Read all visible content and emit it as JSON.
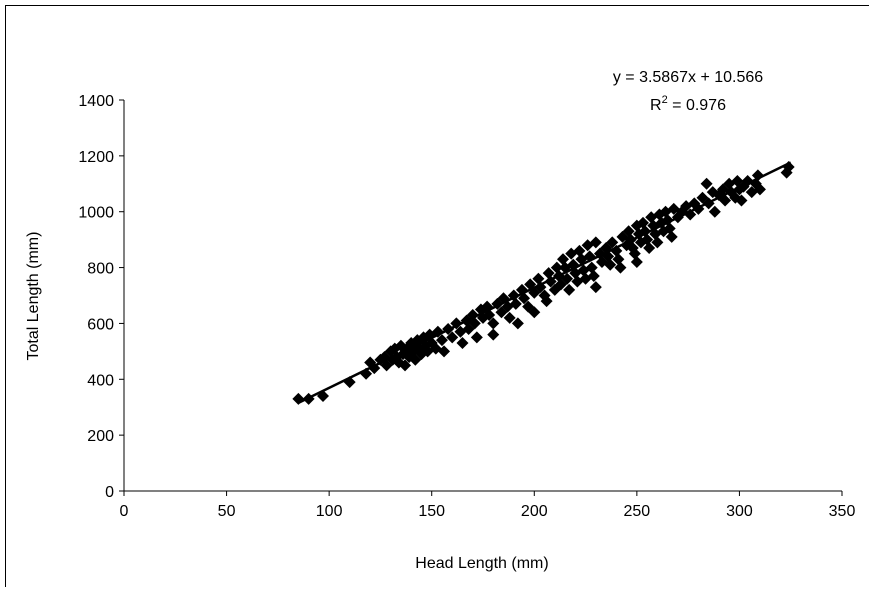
{
  "chart_data": {
    "type": "scatter",
    "title": "",
    "xlabel": "Head Length (mm)",
    "ylabel": "Total Length (mm)",
    "xlim": [
      0,
      350
    ],
    "ylim": [
      0,
      1400
    ],
    "xticks": [
      0,
      50,
      100,
      150,
      200,
      250,
      300,
      350
    ],
    "yticks": [
      0,
      200,
      400,
      600,
      800,
      1000,
      1200,
      1400
    ],
    "grid": false,
    "legend": "none",
    "marker": "diamond",
    "marker_color": "#000000",
    "trendline": {
      "type": "linear",
      "slope": 3.5867,
      "intercept": 10.566,
      "x_range": [
        85,
        325
      ],
      "equation_label": "y = 3.5867x + 10.566",
      "r2_prefix": "R",
      "r2_sup": "2",
      "r2_suffix": " = 0.976"
    },
    "series": [
      {
        "values": [
          [
            85,
            330
          ],
          [
            90,
            330
          ],
          [
            97,
            340
          ],
          [
            110,
            390
          ],
          [
            118,
            420
          ],
          [
            120,
            460
          ],
          [
            122,
            440
          ],
          [
            125,
            470
          ],
          [
            127,
            480
          ],
          [
            128,
            450
          ],
          [
            130,
            500
          ],
          [
            131,
            470
          ],
          [
            132,
            510
          ],
          [
            133,
            480
          ],
          [
            134,
            460
          ],
          [
            135,
            520
          ],
          [
            136,
            490
          ],
          [
            137,
            450
          ],
          [
            138,
            510
          ],
          [
            139,
            480
          ],
          [
            140,
            530
          ],
          [
            141,
            500
          ],
          [
            142,
            470
          ],
          [
            143,
            540
          ],
          [
            144,
            510
          ],
          [
            145,
            490
          ],
          [
            146,
            550
          ],
          [
            147,
            520
          ],
          [
            148,
            500
          ],
          [
            149,
            560
          ],
          [
            150,
            530
          ],
          [
            152,
            510
          ],
          [
            153,
            570
          ],
          [
            155,
            540
          ],
          [
            156,
            500
          ],
          [
            158,
            580
          ],
          [
            160,
            550
          ],
          [
            162,
            600
          ],
          [
            164,
            570
          ],
          [
            165,
            530
          ],
          [
            167,
            610
          ],
          [
            168,
            580
          ],
          [
            170,
            630
          ],
          [
            171,
            600
          ],
          [
            172,
            550
          ],
          [
            174,
            650
          ],
          [
            175,
            620
          ],
          [
            177,
            660
          ],
          [
            178,
            630
          ],
          [
            180,
            600
          ],
          [
            180,
            560
          ],
          [
            182,
            670
          ],
          [
            184,
            640
          ],
          [
            185,
            690
          ],
          [
            187,
            660
          ],
          [
            188,
            620
          ],
          [
            190,
            700
          ],
          [
            191,
            670
          ],
          [
            192,
            600
          ],
          [
            194,
            720
          ],
          [
            195,
            690
          ],
          [
            197,
            660
          ],
          [
            198,
            740
          ],
          [
            200,
            710
          ],
          [
            200,
            640
          ],
          [
            202,
            760
          ],
          [
            203,
            730
          ],
          [
            205,
            700
          ],
          [
            206,
            680
          ],
          [
            207,
            780
          ],
          [
            208,
            750
          ],
          [
            210,
            720
          ],
          [
            211,
            800
          ],
          [
            212,
            770
          ],
          [
            213,
            740
          ],
          [
            214,
            830
          ],
          [
            215,
            800
          ],
          [
            216,
            760
          ],
          [
            217,
            720
          ],
          [
            218,
            850
          ],
          [
            219,
            810
          ],
          [
            220,
            780
          ],
          [
            221,
            750
          ],
          [
            222,
            860
          ],
          [
            223,
            830
          ],
          [
            224,
            790
          ],
          [
            225,
            760
          ],
          [
            226,
            880
          ],
          [
            227,
            840
          ],
          [
            228,
            800
          ],
          [
            229,
            770
          ],
          [
            230,
            890
          ],
          [
            230,
            730
          ],
          [
            232,
            850
          ],
          [
            233,
            820
          ],
          [
            235,
            870
          ],
          [
            236,
            840
          ],
          [
            237,
            810
          ],
          [
            238,
            890
          ],
          [
            240,
            860
          ],
          [
            241,
            830
          ],
          [
            242,
            800
          ],
          [
            243,
            910
          ],
          [
            245,
            880
          ],
          [
            246,
            930
          ],
          [
            247,
            900
          ],
          [
            248,
            870
          ],
          [
            249,
            850
          ],
          [
            250,
            950
          ],
          [
            250,
            820
          ],
          [
            251,
            920
          ],
          [
            252,
            890
          ],
          [
            253,
            960
          ],
          [
            254,
            930
          ],
          [
            255,
            900
          ],
          [
            256,
            870
          ],
          [
            257,
            980
          ],
          [
            258,
            950
          ],
          [
            259,
            920
          ],
          [
            260,
            890
          ],
          [
            261,
            990
          ],
          [
            262,
            960
          ],
          [
            263,
            930
          ],
          [
            264,
            1000
          ],
          [
            265,
            970
          ],
          [
            266,
            940
          ],
          [
            267,
            910
          ],
          [
            268,
            1010
          ],
          [
            270,
            980
          ],
          [
            272,
            1000
          ],
          [
            274,
            1020
          ],
          [
            276,
            990
          ],
          [
            278,
            1030
          ],
          [
            280,
            1010
          ],
          [
            282,
            1050
          ],
          [
            284,
            1100
          ],
          [
            285,
            1030
          ],
          [
            287,
            1070
          ],
          [
            288,
            1000
          ],
          [
            290,
            1060
          ],
          [
            292,
            1080
          ],
          [
            293,
            1040
          ],
          [
            295,
            1100
          ],
          [
            296,
            1070
          ],
          [
            298,
            1050
          ],
          [
            299,
            1110
          ],
          [
            300,
            1080
          ],
          [
            301,
            1040
          ],
          [
            302,
            1090
          ],
          [
            304,
            1110
          ],
          [
            306,
            1070
          ],
          [
            308,
            1100
          ],
          [
            309,
            1130
          ],
          [
            310,
            1080
          ],
          [
            323,
            1140
          ],
          [
            324,
            1160
          ]
        ]
      }
    ]
  }
}
